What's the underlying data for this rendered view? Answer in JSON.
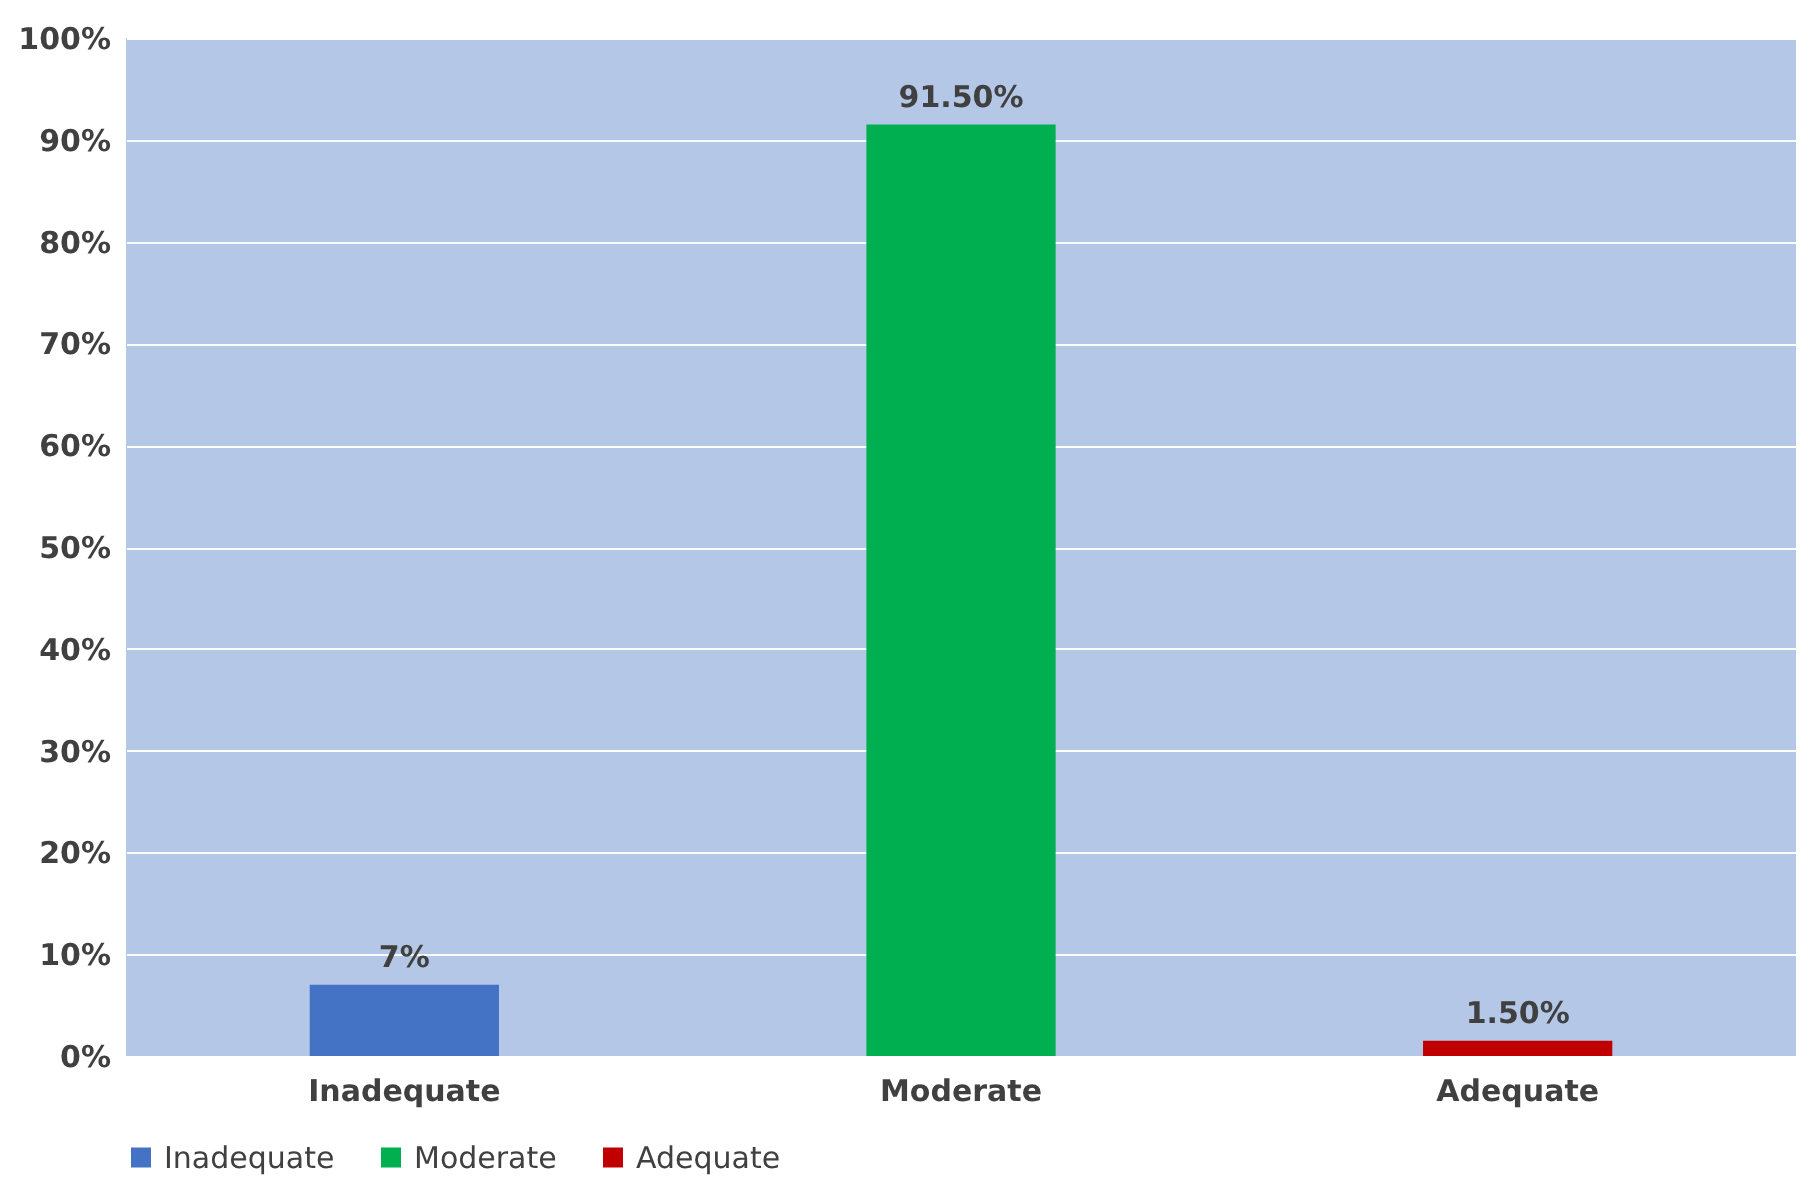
{
  "chart_data": {
    "type": "bar",
    "categories": [
      "Inadequate",
      "Moderate",
      "Adequate"
    ],
    "series": [
      {
        "name": "Inadequate",
        "color": "#4472c4",
        "values": [
          7,
          null,
          null
        ],
        "value_labels": [
          "7%",
          null,
          null
        ]
      },
      {
        "name": "Moderate",
        "color": "#00b050",
        "values": [
          null,
          91.5,
          null
        ],
        "value_labels": [
          null,
          "91.50%",
          null
        ]
      },
      {
        "name": "Adequate",
        "color": "#c00000",
        "values": [
          null,
          null,
          1.5
        ],
        "value_labels": [
          null,
          null,
          "1.50%"
        ]
      }
    ],
    "ylim": [
      0,
      100
    ],
    "yticks": [
      {
        "value": 0,
        "label": "0%"
      },
      {
        "value": 10,
        "label": "10%"
      },
      {
        "value": 20,
        "label": "20%"
      },
      {
        "value": 30,
        "label": "30%"
      },
      {
        "value": 40,
        "label": "40%"
      },
      {
        "value": 50,
        "label": "50%"
      },
      {
        "value": 60,
        "label": "60%"
      },
      {
        "value": 70,
        "label": "70%"
      },
      {
        "value": 80,
        "label": "80%"
      },
      {
        "value": 90,
        "label": "90%"
      },
      {
        "value": 100,
        "label": "100%"
      }
    ],
    "grid": "y",
    "legend": "bottom"
  }
}
